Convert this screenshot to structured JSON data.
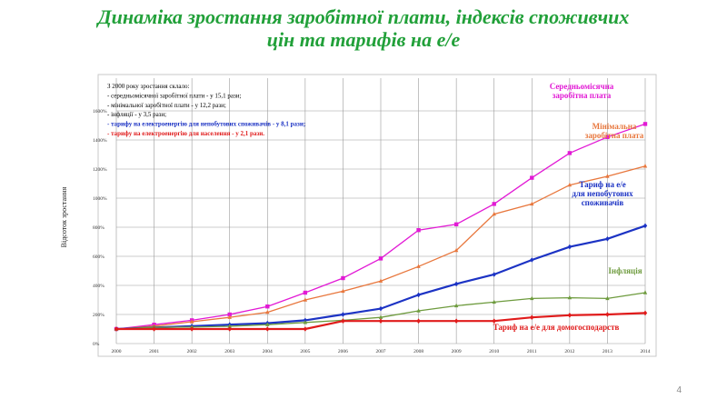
{
  "slide": {
    "title_line1": "Динаміка зростання заробітної плати, індексів споживчих",
    "title_line2": "цін та тарифів на е/е",
    "page_number": "4"
  },
  "colors": {
    "title": "#21a039",
    "salary": "#e21ad5",
    "min_wage": "#e8773d",
    "tariff_industry": "#1c33c4",
    "inflation": "#6e9b3e",
    "tariff_household": "#e01b1b"
  },
  "chart_data": {
    "type": "line",
    "x": [
      "2000",
      "2001",
      "2002",
      "2003",
      "2004",
      "2005",
      "2006",
      "2007",
      "2008",
      "2009",
      "2010",
      "2011",
      "2012",
      "2013",
      "2014"
    ],
    "ylabel": "Відсоток зростання",
    "xlabel": "",
    "ylim": [
      0,
      1800
    ],
    "yticks": [
      "0%",
      "200%",
      "400%",
      "600%",
      "800%",
      "1000%",
      "1200%",
      "1400%",
      "1600%"
    ],
    "grid": true,
    "series": [
      {
        "key": "salary",
        "name": "Середньомісячна заробітна плата",
        "name_lines": [
          "Середньомісячна",
          "заробітна плата"
        ],
        "color": "#e21ad5",
        "marker": "square",
        "values": [
          100,
          130,
          160,
          200,
          255,
          350,
          450,
          585,
          780,
          820,
          960,
          1140,
          1310,
          1420,
          1510
        ]
      },
      {
        "key": "min_wage",
        "name": "Мінімальна заробітна плата",
        "name_lines": [
          "Мінімальна",
          "заробітна плата"
        ],
        "color": "#e8773d",
        "marker": "triangle",
        "values": [
          100,
          120,
          150,
          180,
          215,
          300,
          360,
          430,
          530,
          640,
          890,
          960,
          1090,
          1150,
          1220
        ]
      },
      {
        "key": "tariff_industry",
        "name": "Тариф на е/е для непобутових споживачів",
        "name_lines": [
          "Тариф на е/е",
          "для непобутових",
          "споживачів"
        ],
        "color": "#1c33c4",
        "marker": "diamond",
        "values": [
          100,
          110,
          120,
          130,
          140,
          160,
          200,
          240,
          335,
          410,
          475,
          575,
          665,
          720,
          810
        ]
      },
      {
        "key": "inflation",
        "name": "Інфляція",
        "name_lines": [
          "Інфляція"
        ],
        "color": "#6e9b3e",
        "marker": "triangle",
        "values": [
          100,
          112,
          113,
          119,
          130,
          145,
          160,
          180,
          225,
          260,
          285,
          310,
          315,
          310,
          350
        ]
      },
      {
        "key": "tariff_household",
        "name": "Тариф на е/е для домогосподарств",
        "name_lines": [
          "Тариф на е/е для домогосподарств"
        ],
        "color": "#e01b1b",
        "marker": "diamond",
        "values": [
          100,
          100,
          100,
          100,
          100,
          100,
          155,
          155,
          155,
          155,
          155,
          180,
          195,
          200,
          210
        ]
      }
    ],
    "annotation": {
      "lines": [
        {
          "text": "З 2000 року зростання склало:",
          "color": "#000000",
          "bold": false
        },
        {
          "text": "-   середньомісячної заробітної плати      - у 15,1 рази;",
          "color": "#000000",
          "bold": false
        },
        {
          "text": "-   мінімальної заробітної плати            - у 12,2 рази;",
          "color": "#000000",
          "bold": false
        },
        {
          "text": "- інфляції                                         - у  3,5 рази;",
          "color": "#000000",
          "bold": false
        },
        {
          "text": "- тарифу на електроенергію для непобутових споживачів  - у  8,1 рази;",
          "color": "#1c33c4",
          "bold": true
        },
        {
          "text": "- тарифу на електроенергію для населення - у 2,1 рази.",
          "color": "#e01b1b",
          "bold": true
        }
      ]
    }
  }
}
